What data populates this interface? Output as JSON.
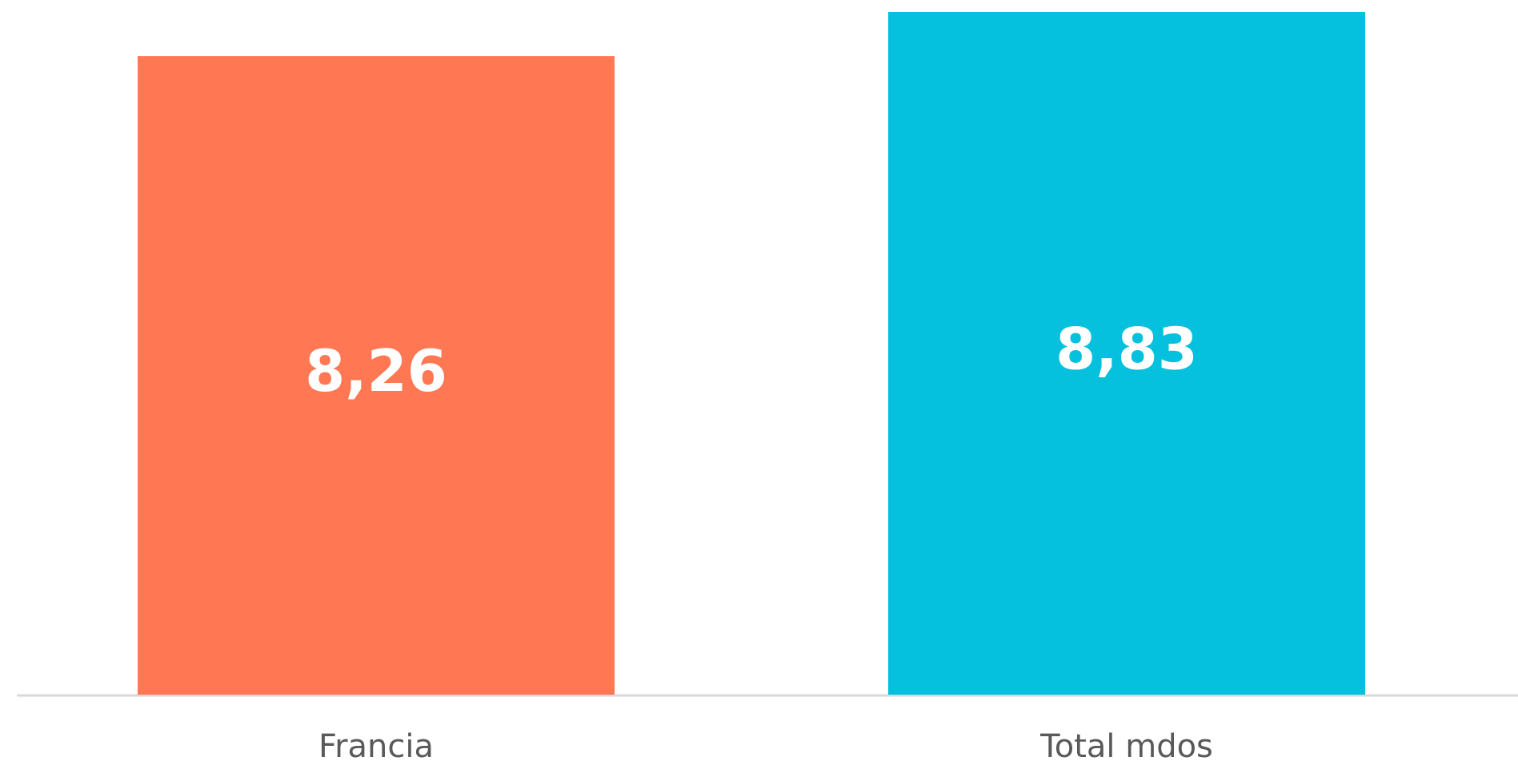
{
  "chart_data": {
    "type": "bar",
    "categories": [
      "Francia",
      "Total mdos"
    ],
    "values": [
      8.26,
      8.83
    ],
    "value_labels": [
      "8,26",
      "8,83"
    ],
    "colors": [
      "#ff7853",
      "#05c1de"
    ],
    "ylim": [
      0,
      8.83
    ]
  }
}
